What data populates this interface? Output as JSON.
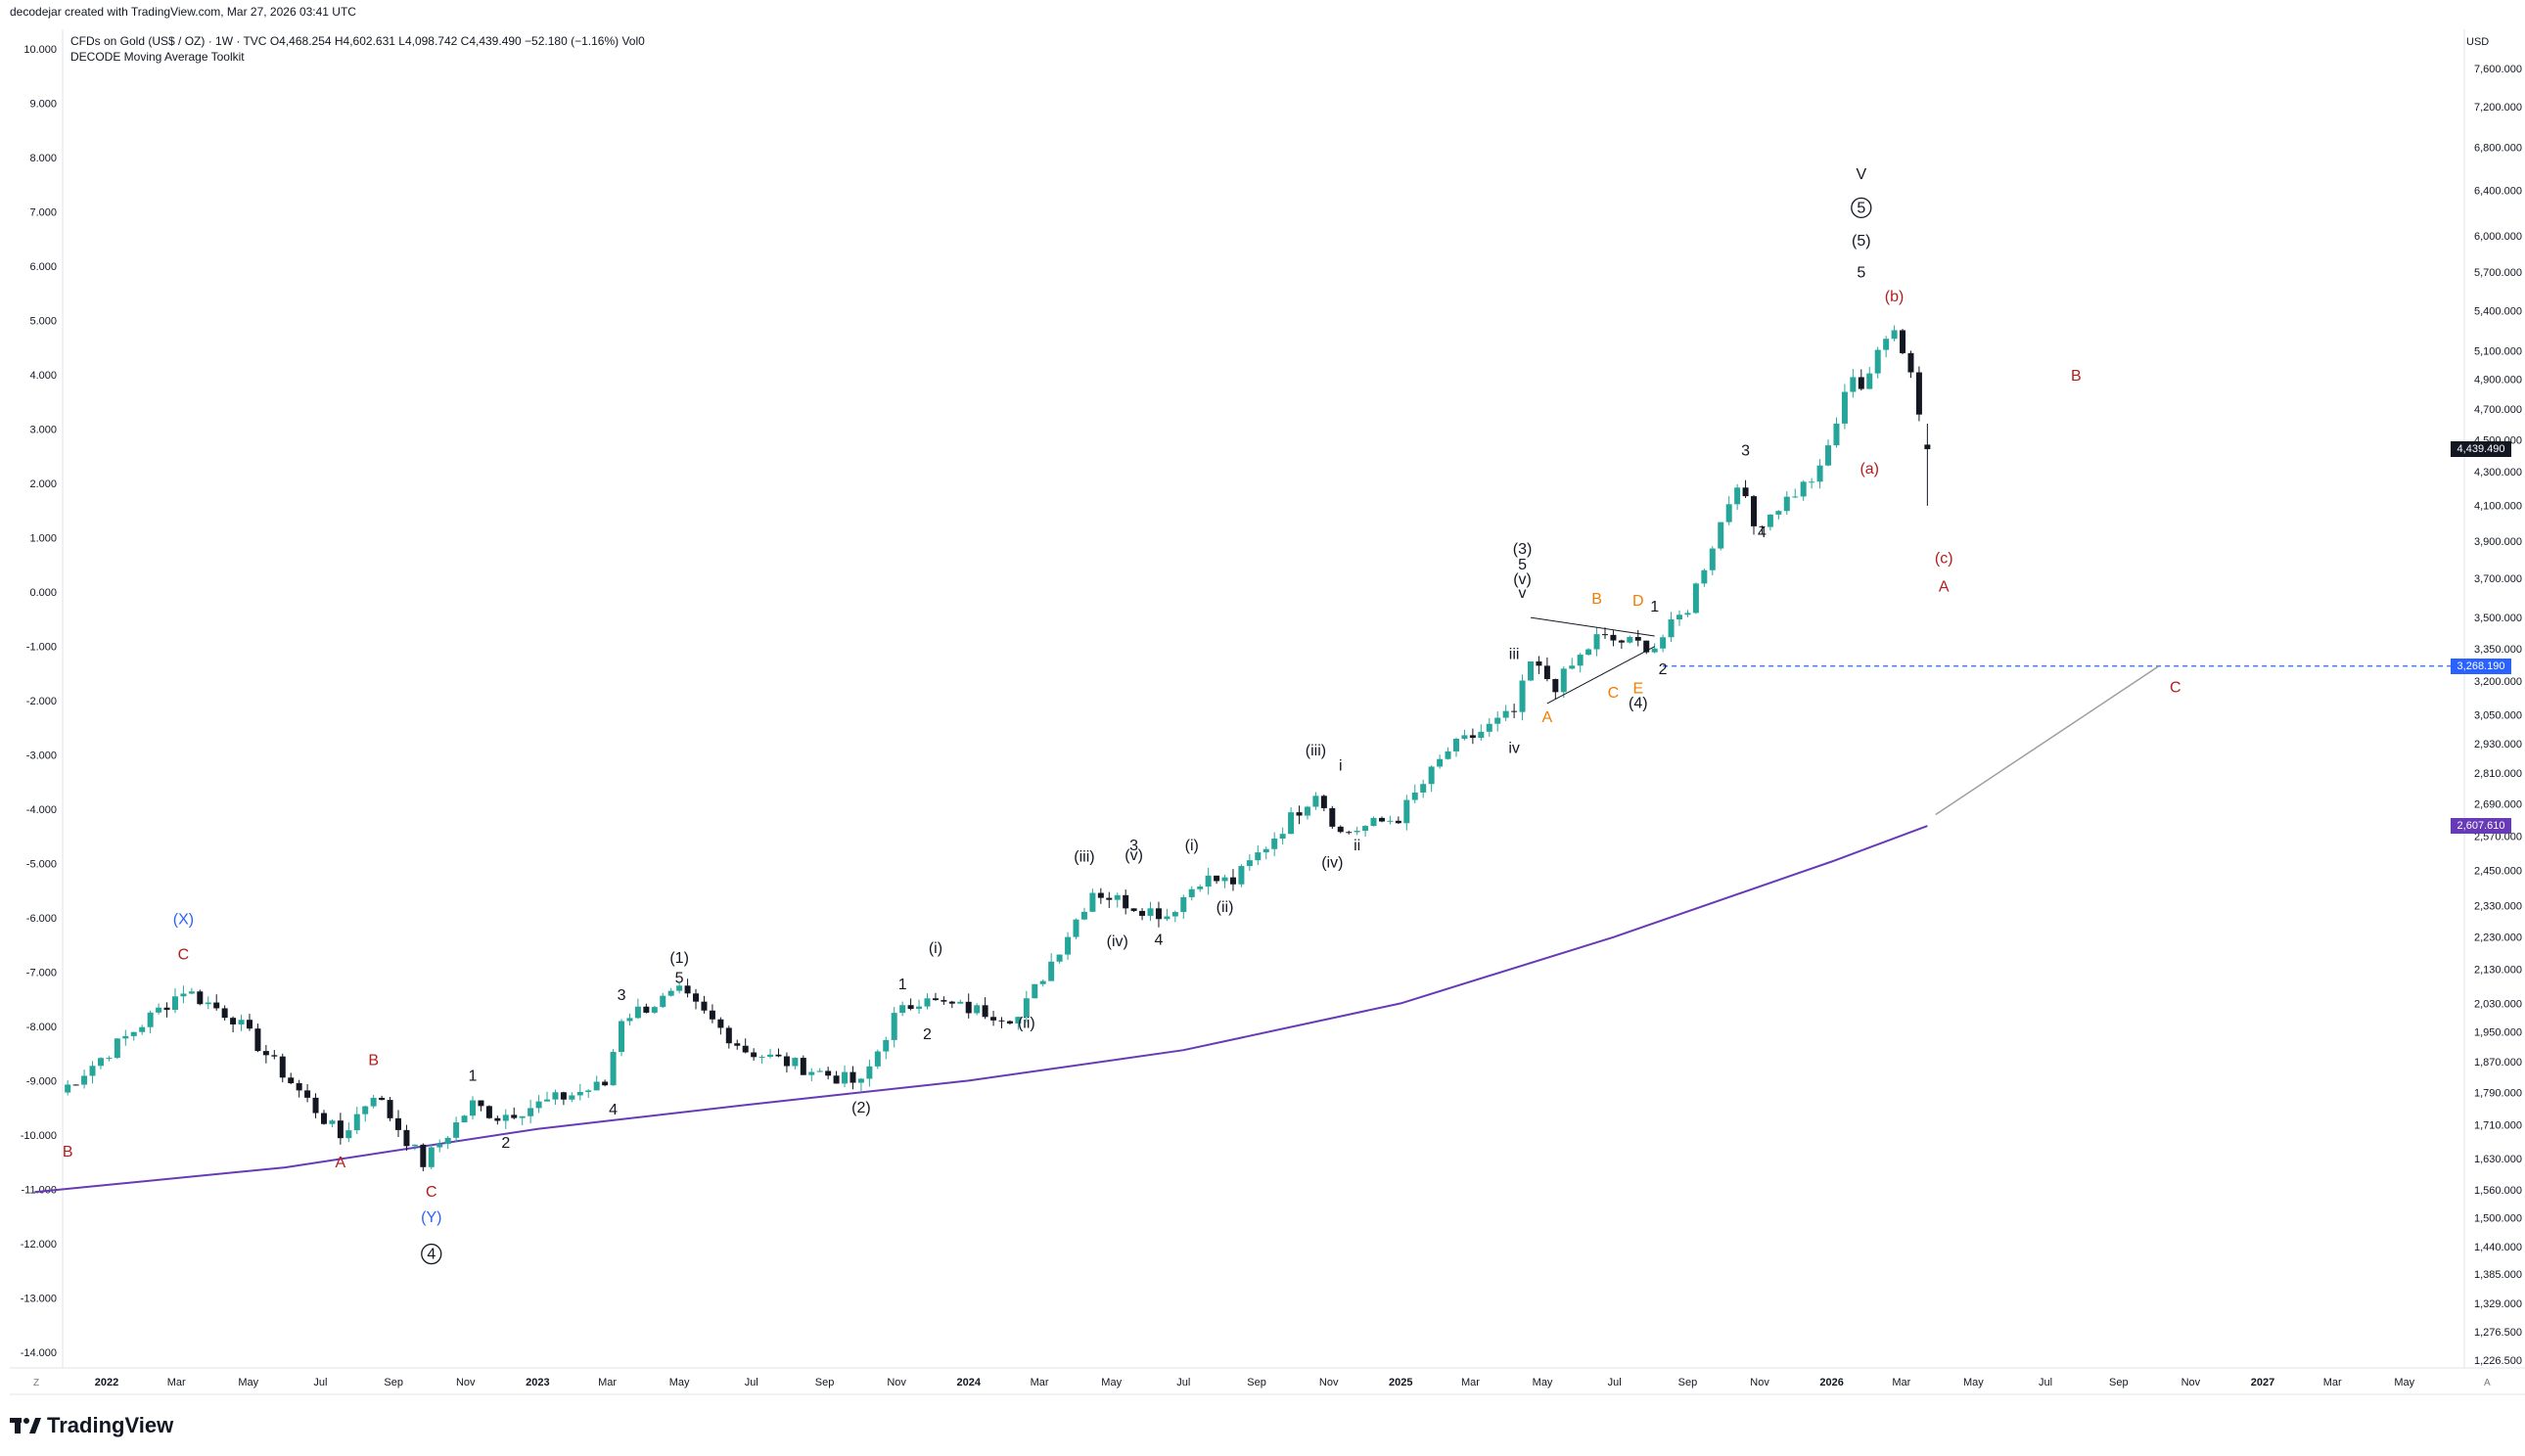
{
  "header": {
    "created_by": "decodejar created with TradingView.com, Mar 27, 2026 03:41 UTC",
    "instrument": "CFDs on Gold (US$ / OZ) · 1W · TVC",
    "ohlc": "O4,468.254 H4,602.631 L4,098.742 C4,439.490 −52.180 (−1.16%) Vol0",
    "indicator": "DECODE Moving Average Toolkit"
  },
  "brand": {
    "logo_text": "TradingView"
  },
  "axes": {
    "currency": "USD",
    "left_corner": "Z",
    "right_corner": "A"
  },
  "badges": {
    "price": {
      "text": "4,439.490",
      "color": "#131722"
    },
    "level": {
      "text": "3,268.190",
      "color": "#2962ff"
    },
    "ma": {
      "text": "2,607.610",
      "color": "#673ab7"
    }
  },
  "chart_data": {
    "type": "candlestick",
    "title": "CFDs on Gold (US$ / OZ) · 1W · TVC",
    "right_axis": {
      "label": "USD",
      "scale": "log",
      "ticks": [
        7600,
        7200,
        6800,
        6400,
        6000,
        5700,
        5400,
        5100,
        4900,
        4700,
        4500,
        4300,
        4100,
        3900,
        3700,
        3500,
        3350,
        3200,
        3050,
        2930,
        2810,
        2690,
        2570,
        2450,
        2330,
        2230,
        2130,
        2030,
        1950,
        1870,
        1790,
        1710,
        1630,
        1560,
        1500,
        1440,
        1385,
        1329,
        1276.5,
        1226.5
      ],
      "tick_labels": [
        "7,600.000",
        "7,200.000",
        "6,800.000",
        "6,400.000",
        "6,000.000",
        "5,700.000",
        "5,400.000",
        "5,100.000",
        "4,900.000",
        "4,700.000",
        "4,500.000",
        "4,300.000",
        "4,100.000",
        "3,900.000",
        "3,700.000",
        "3,500.000",
        "3,350.000",
        "3,200.000",
        "3,050.000",
        "2,930.000",
        "2,810.000",
        "2,690.000",
        "2,570.000",
        "2,450.000",
        "2,330.000",
        "2,230.000",
        "2,130.000",
        "2,030.000",
        "1,950.000",
        "1,870.000",
        "1,790.000",
        "1,710.000",
        "1,630.000",
        "1,560.000",
        "1,500.000",
        "1,440.000",
        "1,385.000",
        "1,329.000",
        "1,276.500",
        "1,226.500"
      ]
    },
    "left_axis": {
      "ticks": [
        10,
        9,
        8,
        7,
        6,
        5,
        4,
        3,
        2,
        1,
        0,
        -1,
        -2,
        -3,
        -4,
        -5,
        -6,
        -7,
        -8,
        -9,
        -10,
        -11,
        -12,
        -13,
        -14
      ],
      "tick_labels": [
        "10.000",
        "9.000",
        "8.000",
        "7.000",
        "6.000",
        "5.000",
        "4.000",
        "3.000",
        "2.000",
        "1.000",
        "0.000",
        "-1.000",
        "-2.000",
        "-3.000",
        "-4.000",
        "-5.000",
        "-6.000",
        "-7.000",
        "-8.000",
        "-9.000",
        "-10.000",
        "-11.000",
        "-12.000",
        "-13.000",
        "-14.000"
      ]
    },
    "x_axis": {
      "labels": [
        {
          "t": "2022-01-01",
          "text": "2022",
          "bold": true
        },
        {
          "t": "2022-03-01",
          "text": "Mar"
        },
        {
          "t": "2022-05-01",
          "text": "May"
        },
        {
          "t": "2022-07-01",
          "text": "Jul"
        },
        {
          "t": "2022-09-01",
          "text": "Sep"
        },
        {
          "t": "2022-11-01",
          "text": "Nov"
        },
        {
          "t": "2023-01-01",
          "text": "2023",
          "bold": true
        },
        {
          "t": "2023-03-01",
          "text": "Mar"
        },
        {
          "t": "2023-05-01",
          "text": "May"
        },
        {
          "t": "2023-07-01",
          "text": "Jul"
        },
        {
          "t": "2023-09-01",
          "text": "Sep"
        },
        {
          "t": "2023-11-01",
          "text": "Nov"
        },
        {
          "t": "2024-01-01",
          "text": "2024",
          "bold": true
        },
        {
          "t": "2024-03-01",
          "text": "Mar"
        },
        {
          "t": "2024-05-01",
          "text": "May"
        },
        {
          "t": "2024-07-01",
          "text": "Jul"
        },
        {
          "t": "2024-09-01",
          "text": "Sep"
        },
        {
          "t": "2024-11-01",
          "text": "Nov"
        },
        {
          "t": "2025-01-01",
          "text": "2025",
          "bold": true
        },
        {
          "t": "2025-03-01",
          "text": "Mar"
        },
        {
          "t": "2025-05-01",
          "text": "May"
        },
        {
          "t": "2025-07-01",
          "text": "Jul"
        },
        {
          "t": "2025-09-01",
          "text": "Sep"
        },
        {
          "t": "2025-11-01",
          "text": "Nov"
        },
        {
          "t": "2026-01-01",
          "text": "2026",
          "bold": true
        },
        {
          "t": "2026-03-01",
          "text": "Mar"
        },
        {
          "t": "2026-05-01",
          "text": "May"
        },
        {
          "t": "2026-07-01",
          "text": "Jul"
        },
        {
          "t": "2026-09-01",
          "text": "Sep"
        },
        {
          "t": "2026-11-01",
          "text": "Nov"
        },
        {
          "t": "2027-01-01",
          "text": "2027",
          "bold": true
        },
        {
          "t": "2027-03-01",
          "text": "Mar"
        },
        {
          "t": "2027-05-01",
          "text": "May"
        }
      ]
    },
    "colors": {
      "up": "#26a69a",
      "down": "#131722",
      "ma": "#673ab7",
      "level_line": "#2962ff"
    },
    "key_points": [
      {
        "t": "2021-11-22",
        "price": 1790
      },
      {
        "t": "2022-03-07",
        "price": 2070
      },
      {
        "t": "2022-04-18",
        "price": 1990
      },
      {
        "t": "2022-07-18",
        "price": 1680
      },
      {
        "t": "2022-08-15",
        "price": 1790
      },
      {
        "t": "2022-09-26",
        "price": 1620
      },
      {
        "t": "2022-11-07",
        "price": 1760
      },
      {
        "t": "2022-11-28",
        "price": 1730
      },
      {
        "t": "2023-02-27",
        "price": 1810
      },
      {
        "t": "2023-03-13",
        "price": 1990
      },
      {
        "t": "2023-05-01",
        "price": 2060
      },
      {
        "t": "2023-06-26",
        "price": 1900
      },
      {
        "t": "2023-10-02",
        "price": 1810
      },
      {
        "t": "2023-10-30",
        "price": 1990
      },
      {
        "t": "2023-11-27",
        "price": 2060
      },
      {
        "t": "2023-12-04",
        "price": 2030
      },
      {
        "t": "2024-02-12",
        "price": 1990
      },
      {
        "t": "2024-03-25",
        "price": 2240
      },
      {
        "t": "2024-04-15",
        "price": 2380
      },
      {
        "t": "2024-05-20",
        "price": 2330
      },
      {
        "t": "2024-06-17",
        "price": 2300
      },
      {
        "t": "2024-07-15",
        "price": 2420
      },
      {
        "t": "2024-08-12",
        "price": 2410
      },
      {
        "t": "2024-10-21",
        "price": 2740
      },
      {
        "t": "2024-11-11",
        "price": 2580
      },
      {
        "t": "2024-12-30",
        "price": 2640
      },
      {
        "t": "2025-02-10",
        "price": 2900
      },
      {
        "t": "2025-04-07",
        "price": 3060
      },
      {
        "t": "2025-04-21",
        "price": 3280
      },
      {
        "t": "2025-05-12",
        "price": 3180
      },
      {
        "t": "2025-06-16",
        "price": 3400
      },
      {
        "t": "2025-08-04",
        "price": 3360
      },
      {
        "t": "2025-09-01",
        "price": 3550
      },
      {
        "t": "2025-10-13",
        "price": 4250
      },
      {
        "t": "2025-10-27",
        "price": 3980
      },
      {
        "t": "2025-12-22",
        "price": 4300
      },
      {
        "t": "2026-01-19",
        "price": 4950
      },
      {
        "t": "2026-01-26",
        "price": 4850
      },
      {
        "t": "2026-02-02",
        "price": 4950
      },
      {
        "t": "2026-02-23",
        "price": 5300
      },
      {
        "t": "2026-03-09",
        "price": 4950
      },
      {
        "t": "2026-03-23",
        "price": 4439.49
      }
    ],
    "last_candle": {
      "t": "2026-03-23",
      "open": 4468.254,
      "high": 4602.631,
      "low": 4098.742,
      "close": 4439.49,
      "change": -52.18,
      "change_pct": -1.16
    },
    "moving_average": [
      {
        "t": "2021-11-01",
        "price": 1555
      },
      {
        "t": "2022-06-01",
        "price": 1610
      },
      {
        "t": "2023-01-01",
        "price": 1700
      },
      {
        "t": "2023-07-01",
        "price": 1760
      },
      {
        "t": "2024-01-01",
        "price": 1820
      },
      {
        "t": "2024-07-01",
        "price": 1900
      },
      {
        "t": "2025-01-01",
        "price": 2030
      },
      {
        "t": "2025-07-01",
        "price": 2230
      },
      {
        "t": "2026-01-01",
        "price": 2480
      },
      {
        "t": "2026-03-23",
        "price": 2607.61
      }
    ],
    "horizontal_level": {
      "price": 3268.19,
      "t_start": "2025-08-11"
    },
    "projection_line": [
      {
        "t": "2026-03-30",
        "price": 2650
      },
      {
        "t": "2026-10-05",
        "price": 3268.19
      }
    ],
    "triangle": {
      "lines": [
        [
          {
            "t": "2025-04-21",
            "price": 3500
          },
          {
            "t": "2025-08-04",
            "price": 3410
          }
        ],
        [
          {
            "t": "2025-05-05",
            "price": 3100
          },
          {
            "t": "2025-08-04",
            "price": 3360
          }
        ]
      ]
    },
    "wave_labels": [
      {
        "text": "B",
        "t": "2021-11-29",
        "price": 1635,
        "color": "#b71c1c"
      },
      {
        "text": "(X)",
        "t": "2022-03-07",
        "price": 2270,
        "color": "#2962ff"
      },
      {
        "text": "C",
        "t": "2022-03-07",
        "price": 2160,
        "color": "#b71c1c"
      },
      {
        "text": "B",
        "t": "2022-08-15",
        "price": 1860,
        "color": "#b71c1c"
      },
      {
        "text": "A",
        "t": "2022-07-18",
        "price": 1610,
        "color": "#b71c1c"
      },
      {
        "text": "C",
        "t": "2022-10-03",
        "price": 1545,
        "color": "#b71c1c"
      },
      {
        "text": "(Y)",
        "t": "2022-10-03",
        "price": 1490,
        "color": "#2962ff"
      },
      {
        "text": "4",
        "t": "2022-10-03",
        "price": 1415,
        "color": "#131722",
        "circled": true
      },
      {
        "text": "1",
        "t": "2022-11-07",
        "price": 1820,
        "color": "#131722"
      },
      {
        "text": "2",
        "t": "2022-12-05",
        "price": 1655,
        "color": "#131722"
      },
      {
        "text": "3",
        "t": "2023-03-13",
        "price": 2040,
        "color": "#131722"
      },
      {
        "text": "4",
        "t": "2023-03-06",
        "price": 1735,
        "color": "#131722"
      },
      {
        "text": "(1)",
        "t": "2023-05-01",
        "price": 2150,
        "color": "#131722"
      },
      {
        "text": "5",
        "t": "2023-05-01",
        "price": 2090,
        "color": "#131722"
      },
      {
        "text": "(2)",
        "t": "2023-10-02",
        "price": 1740,
        "color": "#131722"
      },
      {
        "text": "1",
        "t": "2023-11-06",
        "price": 2070,
        "color": "#131722"
      },
      {
        "text": "2",
        "t": "2023-11-27",
        "price": 1930,
        "color": "#131722"
      },
      {
        "text": "(i)",
        "t": "2023-12-04",
        "price": 2180,
        "color": "#131722"
      },
      {
        "text": "(ii)",
        "t": "2024-02-19",
        "price": 1960,
        "color": "#131722"
      },
      {
        "text": "(iii)",
        "t": "2024-04-08",
        "price": 2480,
        "color": "#131722"
      },
      {
        "text": "(iv)",
        "t": "2024-05-06",
        "price": 2200,
        "color": "#131722"
      },
      {
        "text": "3",
        "t": "2024-05-20",
        "price": 2520,
        "color": "#131722"
      },
      {
        "text": "(v)",
        "t": "2024-05-20",
        "price": 2485,
        "color": "#131722"
      },
      {
        "text": "4",
        "t": "2024-06-10",
        "price": 2205,
        "color": "#131722"
      },
      {
        "text": "(i)",
        "t": "2024-07-08",
        "price": 2520,
        "color": "#131722"
      },
      {
        "text": "(ii)",
        "t": "2024-08-05",
        "price": 2310,
        "color": "#131722"
      },
      {
        "text": "(iii)",
        "t": "2024-10-21",
        "price": 2880,
        "color": "#131722"
      },
      {
        "text": "i",
        "t": "2024-11-11",
        "price": 2820,
        "color": "#131722"
      },
      {
        "text": "(iv)",
        "t": "2024-11-04",
        "price": 2460,
        "color": "#131722"
      },
      {
        "text": "ii",
        "t": "2024-11-25",
        "price": 2520,
        "color": "#131722"
      },
      {
        "text": "iv",
        "t": "2025-04-07",
        "price": 2890,
        "color": "#131722"
      },
      {
        "text": "iii",
        "t": "2025-04-07",
        "price": 3300,
        "color": "#131722"
      },
      {
        "text": "(3)",
        "t": "2025-04-14",
        "price": 3830,
        "color": "#131722"
      },
      {
        "text": "5",
        "t": "2025-04-14",
        "price": 3745,
        "color": "#131722"
      },
      {
        "text": "(v)",
        "t": "2025-04-14",
        "price": 3670,
        "color": "#131722"
      },
      {
        "text": "v",
        "t": "2025-04-14",
        "price": 3600,
        "color": "#131722"
      },
      {
        "text": "A",
        "t": "2025-05-05",
        "price": 3020,
        "color": "#f57c00"
      },
      {
        "text": "B",
        "t": "2025-06-16",
        "price": 3570,
        "color": "#f57c00"
      },
      {
        "text": "C",
        "t": "2025-06-30",
        "price": 3125,
        "color": "#f57c00"
      },
      {
        "text": "D",
        "t": "2025-07-21",
        "price": 3560,
        "color": "#f57c00"
      },
      {
        "text": "E",
        "t": "2025-07-21",
        "price": 3145,
        "color": "#f57c00"
      },
      {
        "text": "(4)",
        "t": "2025-07-21",
        "price": 3080,
        "color": "#131722"
      },
      {
        "text": "1",
        "t": "2025-08-04",
        "price": 3530,
        "color": "#131722"
      },
      {
        "text": "2",
        "t": "2025-08-11",
        "price": 3230,
        "color": "#131722"
      },
      {
        "text": "3",
        "t": "2025-10-20",
        "price": 4400,
        "color": "#131722"
      },
      {
        "text": "4",
        "t": "2025-11-03",
        "price": 3920,
        "color": "#131722"
      },
      {
        "text": "V",
        "t": "2026-01-26",
        "price": 6500,
        "color": "#131722"
      },
      {
        "text": "5",
        "t": "2026-01-26",
        "price": 6200,
        "color": "#131722",
        "circled": true
      },
      {
        "text": "(5)",
        "t": "2026-01-26",
        "price": 5920,
        "color": "#131722"
      },
      {
        "text": "5",
        "t": "2026-01-26",
        "price": 5660,
        "color": "#131722"
      },
      {
        "text": "(b)",
        "t": "2026-02-23",
        "price": 5470,
        "color": "#b71c1c"
      },
      {
        "text": "(a)",
        "t": "2026-02-02",
        "price": 4290,
        "color": "#b71c1c"
      },
      {
        "text": "(c)",
        "t": "2026-04-06",
        "price": 3780,
        "color": "#b71c1c"
      },
      {
        "text": "A",
        "t": "2026-04-06",
        "price": 3630,
        "color": "#b71c1c"
      },
      {
        "text": "B",
        "t": "2026-07-27",
        "price": 4890,
        "color": "#b71c1c"
      },
      {
        "text": "C",
        "t": "2026-10-19",
        "price": 3150,
        "color": "#b71c1c"
      }
    ]
  }
}
